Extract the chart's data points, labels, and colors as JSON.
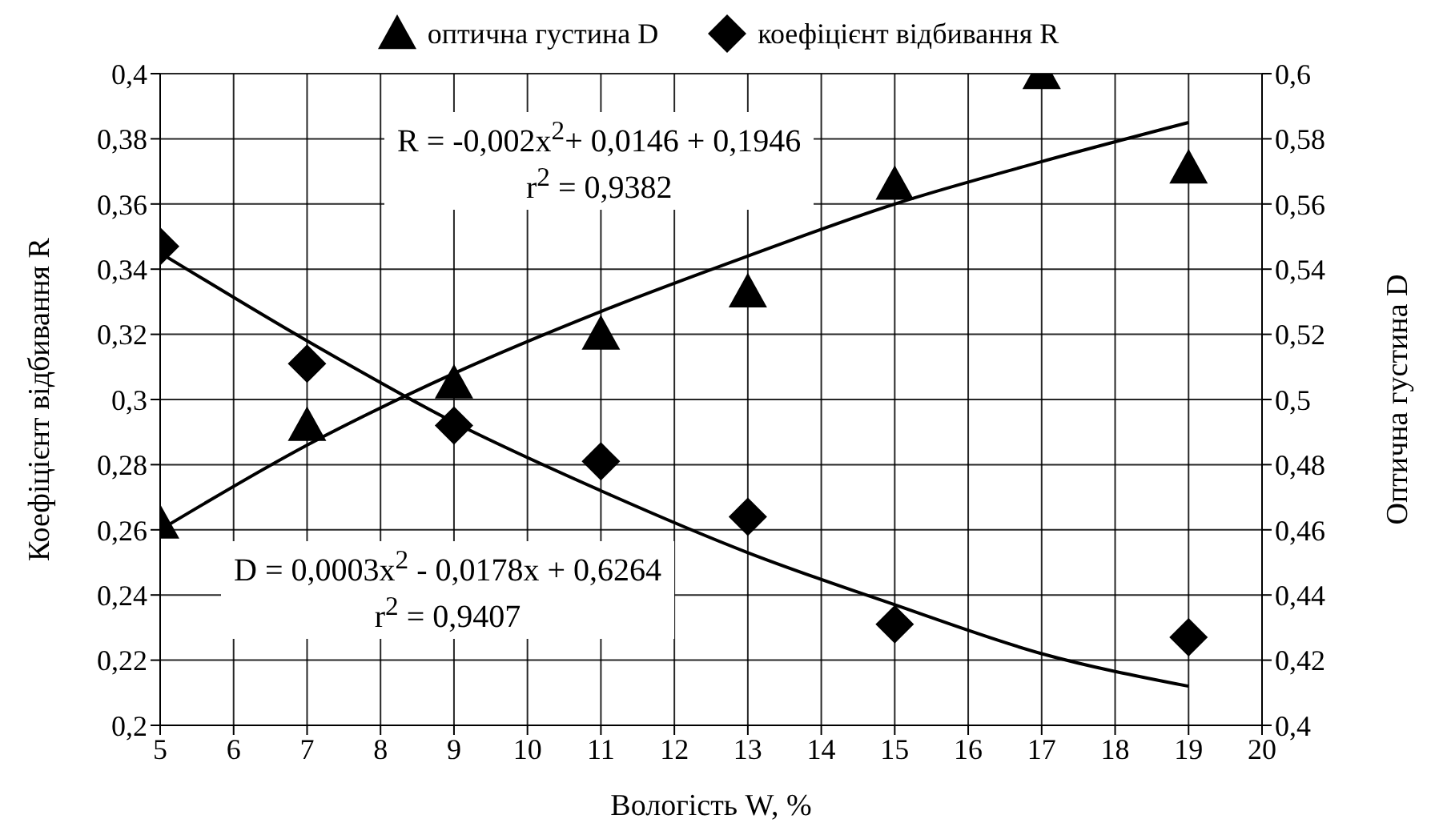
{
  "chart_data": {
    "type": "scatter",
    "xlabel": "Вологість W, %",
    "ylabel": "Коефіцієнт відбивання R",
    "y2label": "Оптична густина D",
    "xlim": [
      5,
      20
    ],
    "xticks": [
      5,
      6,
      7,
      8,
      9,
      10,
      11,
      12,
      13,
      14,
      15,
      16,
      17,
      18,
      19,
      20
    ],
    "ylim": [
      0.2,
      0.4
    ],
    "yticks": [
      {
        "value": 0.2,
        "label": "0,2"
      },
      {
        "value": 0.22,
        "label": "0,22"
      },
      {
        "value": 0.24,
        "label": "0,24"
      },
      {
        "value": 0.26,
        "label": "0,26"
      },
      {
        "value": 0.28,
        "label": "0,28"
      },
      {
        "value": 0.3,
        "label": "0,3"
      },
      {
        "value": 0.32,
        "label": "0,32"
      },
      {
        "value": 0.34,
        "label": "0,34"
      },
      {
        "value": 0.36,
        "label": "0,36"
      },
      {
        "value": 0.38,
        "label": "0,38"
      },
      {
        "value": 0.4,
        "label": "0,4"
      }
    ],
    "y2lim": [
      0.4,
      0.6
    ],
    "y2ticks": [
      {
        "value": 0.4,
        "label": "0,4"
      },
      {
        "value": 0.42,
        "label": "0,42"
      },
      {
        "value": 0.44,
        "label": "0,44"
      },
      {
        "value": 0.46,
        "label": "0,46"
      },
      {
        "value": 0.48,
        "label": "0,48"
      },
      {
        "value": 0.5,
        "label": "0,5"
      },
      {
        "value": 0.52,
        "label": "0,52"
      },
      {
        "value": 0.54,
        "label": "0,54"
      },
      {
        "value": 0.56,
        "label": "0,56"
      },
      {
        "value": 0.58,
        "label": "0,58"
      },
      {
        "value": 0.6,
        "label": "0,6"
      }
    ],
    "grid": true,
    "legend": "top",
    "series": [
      {
        "name": "оптична густина D",
        "marker": "triangle",
        "axis": "y2",
        "color": "#000000",
        "x": [
          5,
          7,
          9,
          11,
          13,
          15,
          17,
          19
        ],
        "values": [
          0.462,
          0.492,
          0.505,
          0.52,
          0.533,
          0.566,
          0.6,
          0.571
        ]
      },
      {
        "name": "коефіцієнт відбивання R",
        "marker": "diamond",
        "color": "#000000",
        "x": [
          5,
          7,
          9,
          11,
          13,
          15,
          19
        ],
        "values": [
          0.347,
          0.311,
          0.292,
          0.281,
          0.264,
          0.231,
          0.227
        ]
      },
      {
        "type": "line",
        "axis": "y2",
        "color": "#000000",
        "x": [
          5,
          7,
          9,
          11,
          13,
          15,
          17,
          19
        ],
        "values": [
          0.46,
          0.486,
          0.508,
          0.527,
          0.544,
          0.56,
          0.573,
          0.585
        ]
      },
      {
        "type": "line",
        "color": "#000000",
        "x": [
          5,
          7,
          9,
          11,
          13,
          15,
          17,
          19
        ],
        "values": [
          0.345,
          0.318,
          0.293,
          0.272,
          0.253,
          0.237,
          0.222,
          0.212
        ]
      }
    ],
    "annotations": [
      "R = -0,002x$^{2}$+ 0,0146 + 0,1946",
      "r$^{2}$ = 0,9382",
      "D = 0,0003x$^{2}$ - 0,0178x + 0,6264",
      "r$^{2}$ = 0,9407"
    ]
  }
}
